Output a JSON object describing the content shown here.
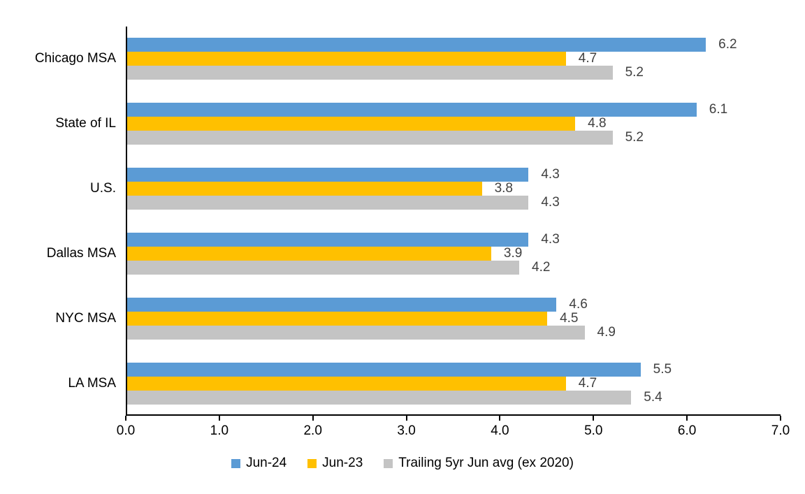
{
  "chart_data": {
    "type": "bar",
    "orientation": "horizontal",
    "categories": [
      "Chicago MSA",
      "State of IL",
      "U.S.",
      "Dallas MSA",
      "NYC MSA",
      "LA MSA"
    ],
    "series": [
      {
        "name": "Jun-24",
        "color": "#5B9BD5",
        "values": [
          6.2,
          6.1,
          4.3,
          4.3,
          4.6,
          5.5
        ]
      },
      {
        "name": "Jun-23",
        "color": "#FFC000",
        "values": [
          4.7,
          4.8,
          3.8,
          3.9,
          4.5,
          4.7
        ]
      },
      {
        "name": "Trailing 5yr Jun avg (ex 2020)",
        "color": "#C4C4C4",
        "values": [
          5.2,
          5.2,
          4.3,
          4.2,
          4.9,
          5.4
        ]
      }
    ],
    "xlim": [
      0.0,
      7.0
    ],
    "x_tick_labels": [
      "0.0",
      "1.0",
      "2.0",
      "3.0",
      "4.0",
      "5.0",
      "6.0",
      "7.0"
    ],
    "title": "",
    "xlabel": "",
    "ylabel": "",
    "grid": false,
    "legend_position": "bottom",
    "value_label_color": "#404040",
    "axis_color": "#000000"
  }
}
